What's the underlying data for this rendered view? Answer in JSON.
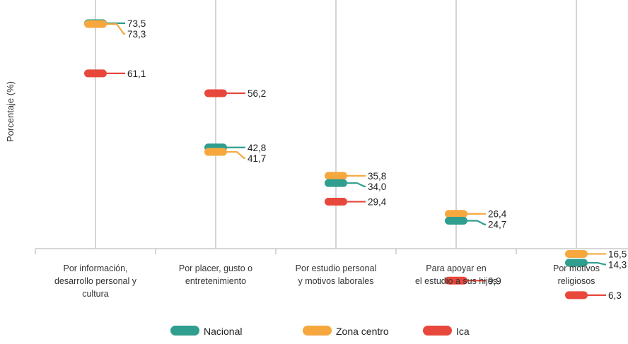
{
  "chart_data": {
    "type": "dot",
    "ylabel": "Porcentaje (%)",
    "categories": [
      "Por información, desarrollo personal y cultura",
      "Por placer, gusto o entretenimiento",
      "Por estudio personal y motivos laborales",
      "Para apoyar en el estudio a sus hijos",
      "Por motivos religiosos"
    ],
    "category_lines": [
      [
        "Por información,",
        "desarrollo personal y",
        "cultura"
      ],
      [
        "Por placer, gusto o",
        "entretenimiento"
      ],
      [
        "Por estudio personal",
        "y motivos laborales"
      ],
      [
        "Para apoyar en",
        "el estudio a sus hijos"
      ],
      [
        "Por motivos",
        "religiosos"
      ]
    ],
    "series": [
      {
        "name": "Nacional",
        "color": "#2f9e8f",
        "values": [
          73.5,
          42.8,
          34.0,
          24.7,
          14.3
        ],
        "labels": [
          "73,5",
          "42,8",
          "34,0",
          "24,7",
          "14,3"
        ]
      },
      {
        "name": "Zona centro",
        "color": "#f6a83e",
        "values": [
          73.3,
          41.7,
          35.8,
          26.4,
          16.5
        ],
        "labels": [
          "73,3",
          "41,7",
          "35,8",
          "26,4",
          "16,5"
        ]
      },
      {
        "name": "Ica",
        "color": "#e8473c",
        "values": [
          61.1,
          56.2,
          29.4,
          9.9,
          6.3
        ],
        "labels": [
          "61,1",
          "56,2",
          "29,4",
          "9,9",
          "6,3"
        ]
      }
    ],
    "grid": true,
    "legend_position": "bottom"
  }
}
